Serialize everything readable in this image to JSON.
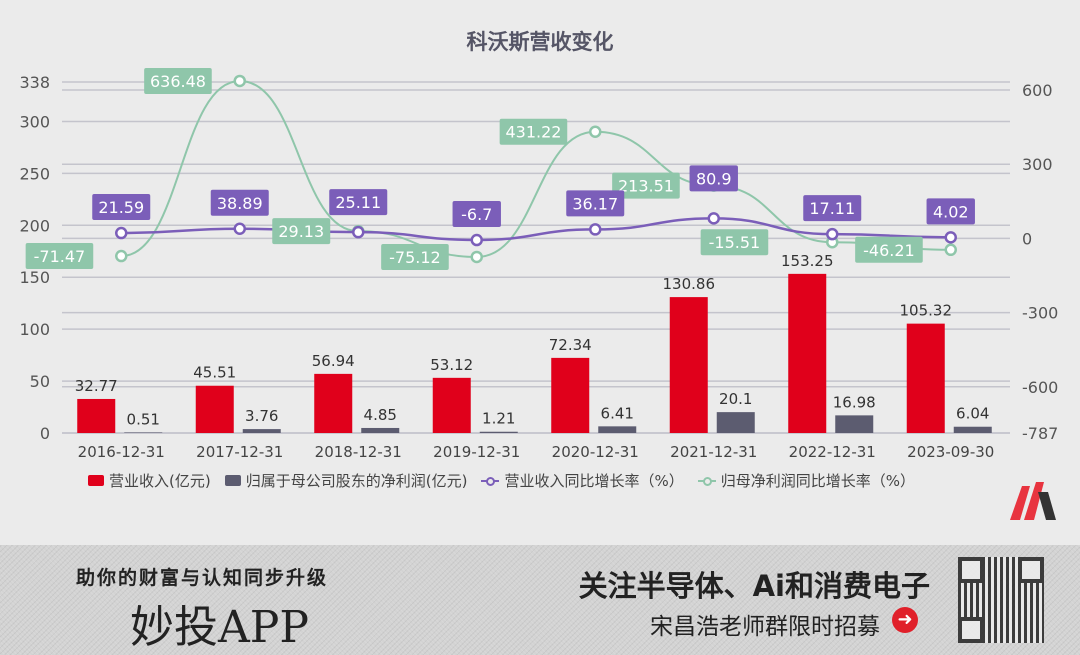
{
  "chart_data": {
    "type": "bar+line",
    "title": "科沃斯营收变化",
    "categories": [
      "2016-12-31",
      "2017-12-31",
      "2018-12-31",
      "2019-12-31",
      "2020-12-31",
      "2021-12-31",
      "2022-12-31",
      "2023-09-30"
    ],
    "series": [
      {
        "name": "营业收入(亿元)",
        "type": "bar",
        "axis": "left",
        "color": "#e0001b",
        "values": [
          32.77,
          45.51,
          56.94,
          53.12,
          72.34,
          130.86,
          153.25,
          105.32
        ]
      },
      {
        "name": "归属于母公司股东的净利润(亿元)",
        "type": "bar",
        "axis": "left",
        "color": "#5c5c70",
        "values": [
          0.51,
          3.76,
          4.85,
          1.21,
          6.41,
          20.1,
          16.98,
          6.04
        ]
      },
      {
        "name": "营业收入同比增长率（%）",
        "type": "line",
        "axis": "right",
        "color": "#7b5eb9",
        "values": [
          21.59,
          38.89,
          25.11,
          -6.7,
          36.17,
          80.9,
          17.11,
          4.02
        ]
      },
      {
        "name": "归母净利润同比增长率（%）",
        "type": "line",
        "axis": "right",
        "color": "#8fc6aa",
        "values": [
          -71.47,
          636.48,
          29.13,
          -75.12,
          431.22,
          213.51,
          -15.51,
          -46.21
        ]
      }
    ],
    "left_axis": {
      "min": 0,
      "max": 338,
      "ticks": [
        "338",
        "300",
        "250",
        "200",
        "150",
        "100",
        "50",
        "0"
      ]
    },
    "right_axis": {
      "min": -787,
      "max": 636.48,
      "ticks": [
        "600",
        "300",
        "0",
        "-300",
        "-600",
        "-787"
      ]
    },
    "grid": true,
    "legend_position": "bottom"
  },
  "banner": {
    "slogan": "助你的财富与认知同步升级",
    "app": "妙投APP",
    "promo_line1": "关注半导体、Ai和消费电子",
    "promo_line2": "宋昌浩老师群限时招募"
  }
}
